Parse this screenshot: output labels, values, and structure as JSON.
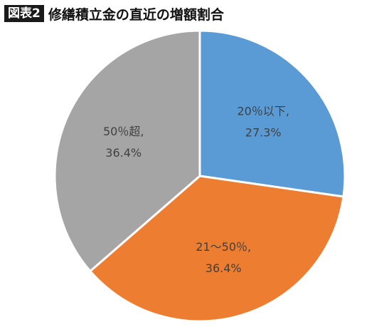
{
  "header": {
    "badge": "図表2",
    "title": "修繕積立金の直近の増額割合"
  },
  "chart_data": {
    "type": "pie",
    "title": "修繕積立金の直近の増額割合",
    "start": "12 o'clock, clockwise",
    "slices": [
      {
        "label": "20％以下,",
        "value": 27.3,
        "value_label": "27.3%",
        "color": "#5b9bd5"
      },
      {
        "label": "21～50％,",
        "value": 36.4,
        "value_label": "36.4%",
        "color": "#ed7d31"
      },
      {
        "label": "50％超,",
        "value": 36.4,
        "value_label": "36.4%",
        "color": "#a5a5a5"
      }
    ],
    "border_color": "#ffffff"
  }
}
